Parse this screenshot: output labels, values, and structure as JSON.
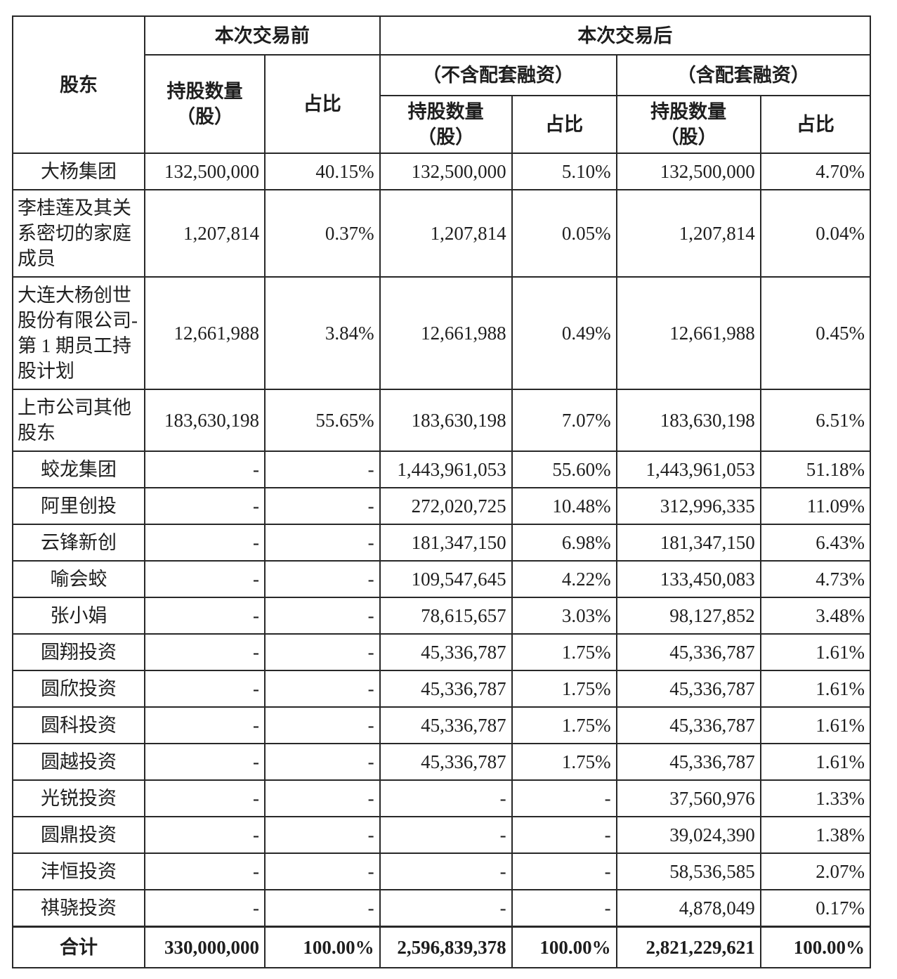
{
  "table": {
    "header": {
      "shareholder": "股东",
      "before_group": "本次交易前",
      "after_group": "本次交易后",
      "no_financing_group": "（不含配套融资）",
      "with_financing_group": "（含配套融资）",
      "shares_label": "持股数量\n（股）",
      "ratio_label": "占比"
    },
    "rows": [
      {
        "name": "大杨集团",
        "cells": [
          "132,500,000",
          "40.15%",
          "132,500,000",
          "5.10%",
          "132,500,000",
          "4.70%"
        ]
      },
      {
        "name": "李桂莲及其关系密切的家庭成员",
        "cells": [
          "1,207,814",
          "0.37%",
          "1,207,814",
          "0.05%",
          "1,207,814",
          "0.04%"
        ]
      },
      {
        "name": "大连大杨创世股份有限公司-第 1 期员工持股计划",
        "cells": [
          "12,661,988",
          "3.84%",
          "12,661,988",
          "0.49%",
          "12,661,988",
          "0.45%"
        ]
      },
      {
        "name": "上市公司其他股东",
        "cells": [
          "183,630,198",
          "55.65%",
          "183,630,198",
          "7.07%",
          "183,630,198",
          "6.51%"
        ]
      },
      {
        "name": "蛟龙集团",
        "cells": [
          "-",
          "-",
          "1,443,961,053",
          "55.60%",
          "1,443,961,053",
          "51.18%"
        ]
      },
      {
        "name": "阿里创投",
        "cells": [
          "-",
          "-",
          "272,020,725",
          "10.48%",
          "312,996,335",
          "11.09%"
        ]
      },
      {
        "name": "云锋新创",
        "cells": [
          "-",
          "-",
          "181,347,150",
          "6.98%",
          "181,347,150",
          "6.43%"
        ]
      },
      {
        "name": "喻会蛟",
        "cells": [
          "-",
          "-",
          "109,547,645",
          "4.22%",
          "133,450,083",
          "4.73%"
        ]
      },
      {
        "name": "张小娟",
        "cells": [
          "-",
          "-",
          "78,615,657",
          "3.03%",
          "98,127,852",
          "3.48%"
        ]
      },
      {
        "name": "圆翔投资",
        "cells": [
          "-",
          "-",
          "45,336,787",
          "1.75%",
          "45,336,787",
          "1.61%"
        ]
      },
      {
        "name": "圆欣投资",
        "cells": [
          "-",
          "-",
          "45,336,787",
          "1.75%",
          "45,336,787",
          "1.61%"
        ]
      },
      {
        "name": "圆科投资",
        "cells": [
          "-",
          "-",
          "45,336,787",
          "1.75%",
          "45,336,787",
          "1.61%"
        ]
      },
      {
        "name": "圆越投资",
        "cells": [
          "-",
          "-",
          "45,336,787",
          "1.75%",
          "45,336,787",
          "1.61%"
        ]
      },
      {
        "name": "光锐投资",
        "cells": [
          "-",
          "-",
          "-",
          "-",
          "37,560,976",
          "1.33%"
        ]
      },
      {
        "name": "圆鼎投资",
        "cells": [
          "-",
          "-",
          "-",
          "-",
          "39,024,390",
          "1.38%"
        ]
      },
      {
        "name": "沣恒投资",
        "cells": [
          "-",
          "-",
          "-",
          "-",
          "58,536,585",
          "2.07%"
        ]
      },
      {
        "name": "祺骁投资",
        "cells": [
          "-",
          "-",
          "-",
          "-",
          "4,878,049",
          "0.17%"
        ]
      }
    ],
    "total": {
      "name": "合计",
      "cells": [
        "330,000,000",
        "100.00%",
        "2,596,839,378",
        "100.00%",
        "2,821,229,621",
        "100.00%"
      ]
    }
  }
}
